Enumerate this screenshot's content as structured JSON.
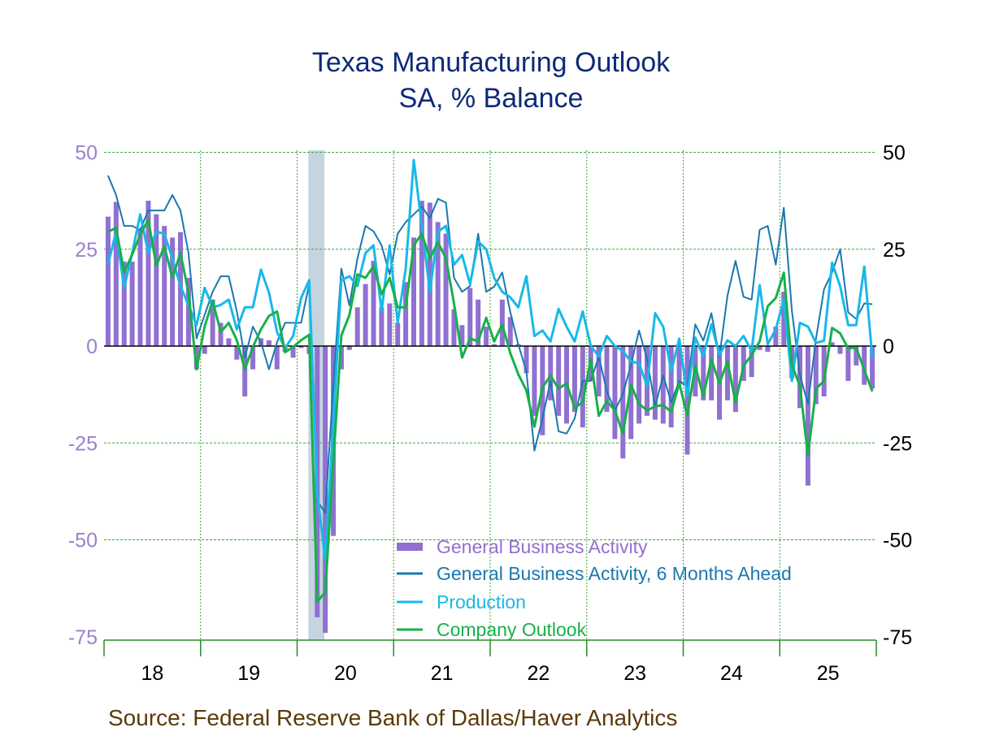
{
  "chart_data": {
    "type": "bar+line",
    "title": "Texas Manufacturing Outlook",
    "subtitle": "SA, % Balance",
    "source": "Source:  Federal Reserve Bank of Dallas/Haver Analytics",
    "x_tick_labels": [
      "18",
      "19",
      "20",
      "21",
      "22",
      "23",
      "24",
      "25"
    ],
    "x_start": "2018-01",
    "frequency": "monthly",
    "ylim": [
      -75,
      50
    ],
    "y_ticks": [
      50,
      25,
      0,
      -25,
      -50,
      -75
    ],
    "y_tick_labels": [
      "50",
      "25",
      "0",
      "-25",
      "-50",
      "-75"
    ],
    "grid": true,
    "recession_shading": {
      "start": "2020-02",
      "end": "2020-04",
      "color": "#c5d5df"
    },
    "legend_placement": "bottom-center",
    "series": [
      {
        "name": "General Business Activity",
        "kind": "bar",
        "color": "#9070d0",
        "values": [
          33.4,
          37.2,
          21.8,
          21.8,
          30,
          37.5,
          34,
          31,
          28,
          29.4,
          17.6,
          -6,
          -2,
          12,
          6,
          2,
          -3.5,
          -13,
          -6,
          2,
          1.5,
          -6,
          -1.5,
          -3,
          -0.5,
          -2,
          -70,
          -74,
          -49,
          -6,
          -1,
          10,
          16,
          22,
          10,
          11,
          6,
          16.5,
          28,
          37.5,
          37,
          32,
          29,
          9.5,
          5.4,
          15,
          12,
          5,
          0.5,
          12,
          7.5,
          0.5,
          -7,
          -18,
          -23,
          -14,
          -18,
          -20,
          -17,
          -21,
          -9,
          -13,
          -17,
          -24,
          -29,
          -24,
          -20,
          -18,
          -19,
          -20,
          -21,
          -10,
          -28,
          -13,
          -14,
          -14,
          -19,
          -14,
          -17,
          -9,
          -8,
          -1,
          -1.5,
          5,
          14,
          -8.3,
          -16,
          -36,
          -15,
          -13,
          1,
          -2,
          -9,
          -5,
          -10,
          -11
        ]
      },
      {
        "name": "General Business Activity, 6 Months Ahead",
        "kind": "line",
        "color": "#1a78b0",
        "values": [
          44,
          39,
          31,
          31,
          30,
          35,
          35,
          35,
          39,
          35,
          24,
          2,
          8,
          14,
          18,
          18,
          9,
          -3,
          5,
          1,
          -6,
          1,
          6,
          6,
          6,
          16,
          -40,
          -43,
          -10,
          20,
          10.5,
          22.6,
          31,
          29.6,
          26,
          18.5,
          29,
          32,
          34,
          36,
          33,
          38,
          37,
          17.6,
          14,
          15.5,
          29,
          14,
          15.3,
          19,
          8.8,
          0.4,
          -6.5,
          -27,
          -18.7,
          -9,
          -22,
          -22.6,
          -18.7,
          -9,
          -9,
          -2.7,
          -11.7,
          -16.6,
          -12.4,
          -4.8,
          4,
          -3.4,
          -15.6,
          -7.6,
          -14.5,
          -9,
          -10.4,
          5.6,
          1.4,
          8.5,
          -2.7,
          13,
          22,
          12.7,
          12,
          30,
          31,
          21,
          35.7,
          9.2,
          -7.5,
          -14.9,
          1.9,
          14.7,
          19,
          25,
          8.7,
          7,
          11,
          10.8
        ]
      },
      {
        "name": "Production",
        "kind": "line",
        "color": "#19b8e8",
        "values": [
          21,
          29.6,
          15,
          24,
          34,
          24,
          29.5,
          29,
          22.5,
          15.5,
          10.6,
          5.4,
          15,
          10,
          10.6,
          12,
          4.3,
          10,
          10,
          19.7,
          13.8,
          3.6,
          -0.5,
          2.6,
          12.4,
          17,
          -38,
          -55,
          -20,
          17,
          18,
          15.5,
          24,
          26,
          9,
          26,
          6,
          20,
          48,
          31,
          14,
          29.5,
          31,
          21,
          23.5,
          16,
          27,
          25,
          17.6,
          14,
          12.6,
          10,
          18,
          2.6,
          4,
          1.2,
          9.6,
          5,
          1.2,
          8.9,
          0.1,
          -2.7,
          2.6,
          0,
          -1.3,
          -4,
          -4.4,
          -10.3,
          8.5,
          5,
          -6.5,
          1.9,
          -13,
          2.2,
          -2.7,
          5.6,
          -2.3,
          1.5,
          0,
          2.6,
          -1.3,
          15.7,
          0.5,
          4.3,
          12,
          -9,
          6,
          5,
          0.8,
          1.4,
          21.5,
          15.5,
          5.4,
          5.4,
          20.5,
          -3
        ]
      },
      {
        "name": "Company Outlook",
        "kind": "line",
        "color": "#17b04a",
        "values": [
          29.5,
          30.5,
          19,
          23.6,
          28.8,
          32.6,
          20.8,
          25.7,
          17.6,
          24,
          13.8,
          -6,
          5,
          11.7,
          3.6,
          6,
          1.5,
          -6,
          -0.2,
          4.3,
          7.8,
          8.9,
          -1.6,
          -0.2,
          1.5,
          2.9,
          -66,
          -63.5,
          -30,
          2.7,
          8,
          18.5,
          17.6,
          20.6,
          13.4,
          17.6,
          10,
          10,
          26,
          29,
          22.6,
          26.8,
          22.6,
          11,
          -3,
          2,
          1.2,
          7.3,
          1.2,
          5.6,
          -1.8,
          -7.3,
          -11.4,
          -20.8,
          -10.7,
          -7.6,
          -11,
          -9.6,
          -16,
          -14.5,
          -3.4,
          -18,
          -14.2,
          -16.6,
          -22.6,
          -10,
          -14.9,
          -16.6,
          -15.6,
          -15.2,
          -17,
          -9.6,
          -18,
          -5.1,
          -13,
          -3.4,
          -9.6,
          -4,
          -14.5,
          -5.1,
          -2.3,
          1.2,
          10.3,
          12.4,
          18.9,
          -4.8,
          -10.3,
          -28.2,
          -11,
          -9,
          4.7,
          3.3,
          -0.6,
          -0.4,
          -6.2,
          -11.7
        ]
      }
    ]
  }
}
